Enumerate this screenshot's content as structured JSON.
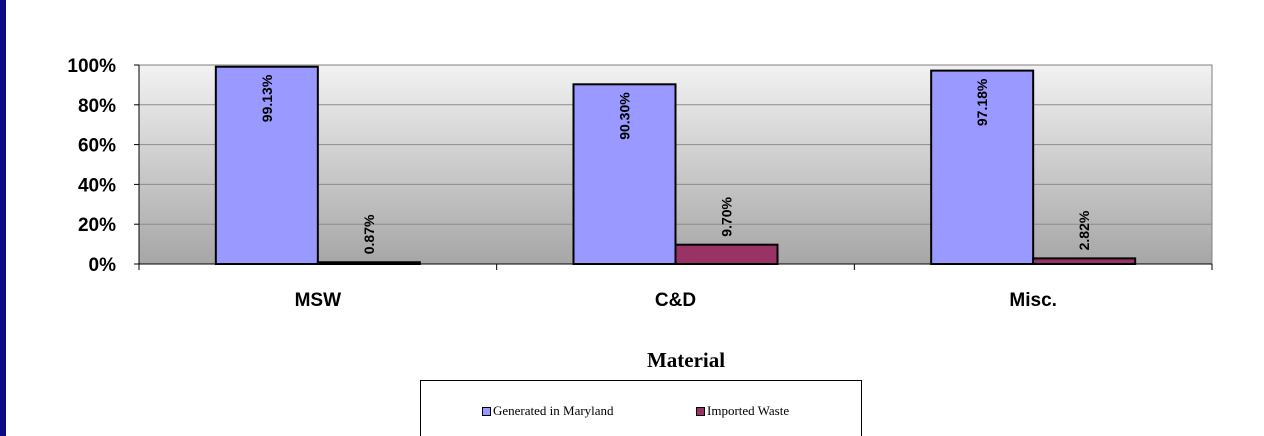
{
  "chart_data": {
    "type": "bar",
    "categories": [
      "MSW",
      "C&D",
      "Misc."
    ],
    "series": [
      {
        "name": "Generated in Maryland",
        "values": [
          99.13,
          90.3,
          97.18
        ],
        "labels": [
          "99.13%",
          "90.30%",
          "97.18%"
        ],
        "color": "#9999ff"
      },
      {
        "name": "Imported Waste",
        "values": [
          0.87,
          9.7,
          2.82
        ],
        "labels": [
          "0.87%",
          "9.70%",
          "2.82%"
        ],
        "color": "#993366"
      }
    ],
    "xlabel": "Material",
    "ylabel": "",
    "ylim": [
      0,
      100
    ],
    "yticks": [
      0,
      20,
      40,
      60,
      80,
      100
    ],
    "ytick_labels": [
      "0%",
      "20%",
      "40%",
      "60%",
      "80%",
      "100%"
    ],
    "grid": true,
    "plot_background": "gradient gray",
    "legend_position": "bottom"
  },
  "legend": {
    "items": [
      "Generated in Maryland",
      "Imported Waste"
    ]
  }
}
